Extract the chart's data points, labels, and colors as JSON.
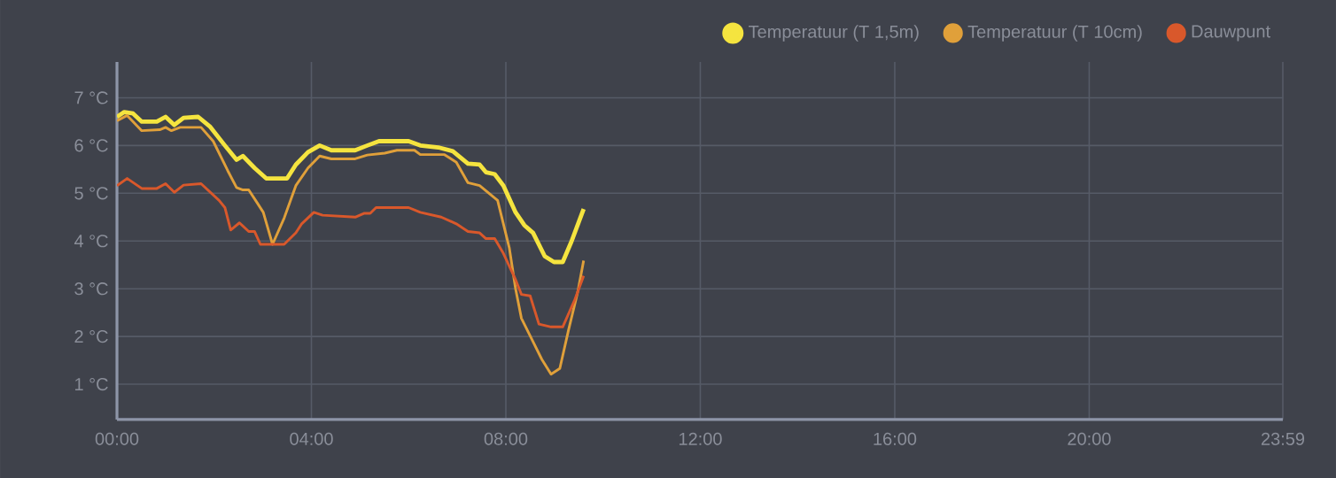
{
  "chart_data": {
    "type": "line",
    "xlim": [
      0,
      23.983
    ],
    "xticks": [
      {
        "value": 0,
        "label": "00:00"
      },
      {
        "value": 4,
        "label": "04:00"
      },
      {
        "value": 8,
        "label": "08:00"
      },
      {
        "value": 12,
        "label": "12:00"
      },
      {
        "value": 16,
        "label": "16:00"
      },
      {
        "value": 20,
        "label": "20:00"
      },
      {
        "value": 23.983,
        "label": "23:59"
      }
    ],
    "ylim": [
      0.26,
      7.75
    ],
    "yticks": [
      {
        "value": 1,
        "label": "1 °C"
      },
      {
        "value": 2,
        "label": "2 °C"
      },
      {
        "value": 3,
        "label": "3 °C"
      },
      {
        "value": 4,
        "label": "4 °C"
      },
      {
        "value": 5,
        "label": "5 °C"
      },
      {
        "value": 6,
        "label": "6 °C"
      },
      {
        "value": 7,
        "label": "7 °C"
      }
    ],
    "grid": true,
    "legend": "top right",
    "series": [
      {
        "name": "Temperatuur (T 1,5m)",
        "color": "#f5e43f",
        "x": [
          0,
          0.15,
          0.33,
          0.51,
          0.82,
          1.0,
          1.18,
          1.37,
          1.67,
          1.91,
          2.22,
          2.46,
          2.59,
          2.83,
          3.07,
          3.5,
          3.68,
          3.93,
          4.17,
          4.41,
          4.9,
          5.15,
          5.39,
          6.0,
          6.24,
          6.61,
          6.91,
          7.22,
          7.46,
          7.59,
          7.77,
          7.95,
          8.2,
          8.38,
          8.56,
          8.8,
          8.99,
          9.17,
          9.35,
          9.6
        ],
        "values": [
          6.6,
          6.7,
          6.67,
          6.5,
          6.5,
          6.6,
          6.43,
          6.58,
          6.6,
          6.4,
          6.0,
          5.7,
          5.78,
          5.53,
          5.31,
          5.31,
          5.6,
          5.86,
          6.0,
          5.9,
          5.9,
          6.0,
          6.09,
          6.09,
          6.0,
          5.96,
          5.88,
          5.62,
          5.6,
          5.44,
          5.4,
          5.16,
          4.6,
          4.33,
          4.17,
          3.68,
          3.56,
          3.56,
          3.99,
          4.67
        ]
      },
      {
        "name": "Temperatuur (T 10cm)",
        "color": "#e0a03a",
        "x": [
          0,
          0.21,
          0.51,
          0.88,
          1.0,
          1.12,
          1.3,
          1.73,
          1.98,
          2.28,
          2.46,
          2.59,
          2.71,
          2.89,
          3.01,
          3.2,
          3.44,
          3.68,
          3.93,
          4.17,
          4.41,
          4.9,
          5.15,
          5.51,
          5.76,
          6.12,
          6.24,
          6.73,
          6.98,
          7.22,
          7.46,
          7.83,
          8.07,
          8.2,
          8.32,
          8.56,
          8.74,
          8.93,
          9.11,
          9.29,
          9.48,
          9.6
        ],
        "values": [
          6.52,
          6.63,
          6.31,
          6.33,
          6.38,
          6.31,
          6.38,
          6.38,
          6.09,
          5.47,
          5.12,
          5.07,
          5.07,
          4.79,
          4.6,
          3.93,
          4.48,
          5.16,
          5.53,
          5.78,
          5.72,
          5.72,
          5.8,
          5.84,
          5.9,
          5.9,
          5.81,
          5.81,
          5.65,
          5.22,
          5.16,
          4.85,
          3.86,
          3.0,
          2.38,
          1.89,
          1.52,
          1.21,
          1.33,
          2.14,
          2.94,
          3.59
        ]
      },
      {
        "name": "Dauwpunt",
        "color": "#d9582b",
        "x": [
          0,
          0.21,
          0.51,
          0.82,
          1.0,
          1.18,
          1.37,
          1.73,
          2.1,
          2.22,
          2.34,
          2.52,
          2.71,
          2.83,
          2.95,
          3.44,
          3.68,
          3.8,
          4.05,
          4.23,
          4.9,
          5.09,
          5.21,
          5.33,
          6.0,
          6.24,
          6.67,
          6.98,
          7.22,
          7.46,
          7.59,
          7.77,
          7.95,
          8.2,
          8.32,
          8.5,
          8.68,
          8.93,
          9.17,
          9.41,
          9.6
        ],
        "values": [
          5.16,
          5.31,
          5.1,
          5.1,
          5.2,
          5.02,
          5.17,
          5.2,
          4.85,
          4.7,
          4.23,
          4.38,
          4.2,
          4.2,
          3.93,
          3.93,
          4.17,
          4.36,
          4.6,
          4.54,
          4.5,
          4.58,
          4.58,
          4.7,
          4.7,
          4.6,
          4.5,
          4.36,
          4.2,
          4.17,
          4.05,
          4.05,
          3.74,
          3.19,
          2.88,
          2.85,
          2.26,
          2.2,
          2.2,
          2.75,
          3.27
        ]
      }
    ]
  }
}
